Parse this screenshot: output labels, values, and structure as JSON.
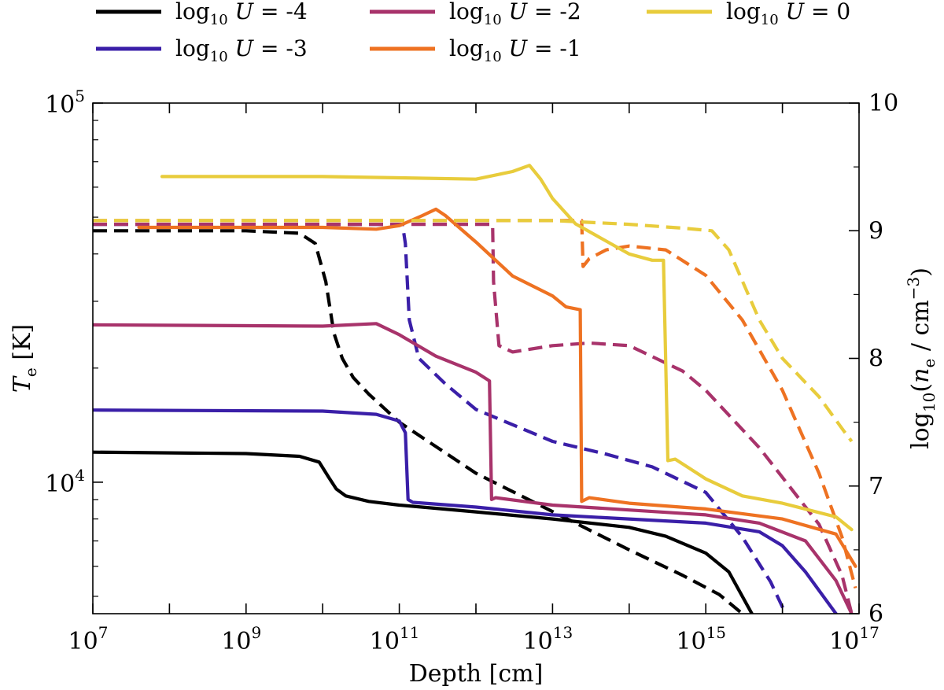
{
  "chart_data": {
    "type": "line",
    "xlabel": "Depth [cm]",
    "ylabel": "T_e [K]",
    "ylabel_right": "log10(n_e / cm^-3)",
    "x_scale": "log",
    "y_scale": "log",
    "xlim": [
      10000000.0,
      1e+17
    ],
    "ylim": [
      4500,
      100000
    ],
    "ylim_right": [
      6,
      10
    ],
    "x_ticks": [
      {
        "value": 10000000.0,
        "base": "10",
        "exp": "7"
      },
      {
        "value": 1000000000.0,
        "base": "10",
        "exp": "9"
      },
      {
        "value": 100000000000.0,
        "base": "10",
        "exp": "11"
      },
      {
        "value": 10000000000000.0,
        "base": "10",
        "exp": "13"
      },
      {
        "value": 1000000000000000.0,
        "base": "10",
        "exp": "15"
      },
      {
        "value": 1e+17,
        "base": "10",
        "exp": "17"
      }
    ],
    "y_ticks": [
      {
        "value": 10000,
        "base": "10",
        "exp": "4"
      },
      {
        "value": 100000,
        "base": "10",
        "exp": "5"
      }
    ],
    "y_ticks_right": [
      6,
      7,
      8,
      9,
      10
    ],
    "line_styles": {
      "temperature": "solid",
      "density": "dashed"
    },
    "legend_placement": "top, above plot",
    "series": [
      {
        "name": "log10 U = -4",
        "legend": {
          "pre": "log",
          "sub": "10",
          "post": " U = -4"
        },
        "color": "#000000",
        "temperature": [
          [
            10000000.0,
            12000
          ],
          [
            1000000000.0,
            11900
          ],
          [
            5000000000.0,
            11700
          ],
          [
            9000000000.0,
            11300
          ],
          [
            12000000000.0,
            10300
          ],
          [
            15000000000.0,
            9600
          ],
          [
            20000000000.0,
            9200
          ],
          [
            40000000000.0,
            8900
          ],
          [
            100000000000.0,
            8700
          ],
          [
            1000000000000.0,
            8350
          ],
          [
            10000000000000.0,
            8000
          ],
          [
            100000000000000.0,
            7600
          ],
          [
            300000000000000.0,
            7200
          ],
          [
            1000000000000000.0,
            6500
          ],
          [
            2000000000000000.0,
            5800
          ],
          [
            4000000000000000.0,
            4500
          ]
        ],
        "density": [
          [
            10000000.0,
            9.0
          ],
          [
            1000000000.0,
            9.0
          ],
          [
            5000000000.0,
            8.98
          ],
          [
            8000000000.0,
            8.9
          ],
          [
            11000000000.0,
            8.6
          ],
          [
            14000000000.0,
            8.2
          ],
          [
            18000000000.0,
            8.0
          ],
          [
            25000000000.0,
            7.85
          ],
          [
            40000000000.0,
            7.72
          ],
          [
            100000000000.0,
            7.5
          ],
          [
            1000000000000.0,
            7.1
          ],
          [
            10000000000000.0,
            6.8
          ],
          [
            100000000000000.0,
            6.5
          ],
          [
            500000000000000.0,
            6.3
          ],
          [
            1500000000000000.0,
            6.15
          ],
          [
            3000000000000000.0,
            6.0
          ]
        ]
      },
      {
        "name": "log10 U = -3",
        "legend": {
          "pre": "log",
          "sub": "10",
          "post": " U = -3"
        },
        "color": "#3a1fa8",
        "temperature": [
          [
            10000000.0,
            15500
          ],
          [
            10000000000.0,
            15400
          ],
          [
            50000000000.0,
            15100
          ],
          [
            100000000000.0,
            14500
          ],
          [
            120000000000.0,
            13500
          ],
          [
            130000000000.0,
            9000
          ],
          [
            150000000000.0,
            8850
          ],
          [
            1000000000000.0,
            8600
          ],
          [
            10000000000000.0,
            8200
          ],
          [
            1000000000000000.0,
            7800
          ],
          [
            5000000000000000.0,
            7400
          ],
          [
            1e+16,
            6800
          ],
          [
            2e+16,
            5800
          ],
          [
            5e+16,
            4500
          ]
        ],
        "density": [
          [
            10000000.0,
            9.05
          ],
          [
            110000000000.0,
            9.05
          ],
          [
            120000000000.0,
            8.9
          ],
          [
            135000000000.0,
            8.3
          ],
          [
            180000000000.0,
            8.0
          ],
          [
            400000000000.0,
            7.8
          ],
          [
            1000000000000.0,
            7.6
          ],
          [
            10000000000000.0,
            7.35
          ],
          [
            50000000000000.0,
            7.25
          ],
          [
            200000000000000.0,
            7.15
          ],
          [
            1000000000000000.0,
            6.95
          ],
          [
            3000000000000000.0,
            6.6
          ],
          [
            7000000000000000.0,
            6.25
          ],
          [
            1.1e+16,
            6.0
          ]
        ]
      },
      {
        "name": "log10 U = -2",
        "legend": {
          "pre": "log",
          "sub": "10",
          "post": " U = -2"
        },
        "color": "#a8336b",
        "temperature": [
          [
            10000000.0,
            26000
          ],
          [
            10000000000.0,
            25800
          ],
          [
            50000000000.0,
            26200
          ],
          [
            100000000000.0,
            24500
          ],
          [
            300000000000.0,
            21500
          ],
          [
            1000000000000.0,
            19500
          ],
          [
            1500000000000.0,
            18500
          ],
          [
            1600000000000.0,
            9000
          ],
          [
            1800000000000.0,
            9100
          ],
          [
            10000000000000.0,
            8700
          ],
          [
            1000000000000000.0,
            8200
          ],
          [
            5000000000000000.0,
            7800
          ],
          [
            2e+16,
            7000
          ],
          [
            5e+16,
            5500
          ],
          [
            8e+16,
            4500
          ]
        ],
        "density": [
          [
            10000000.0,
            9.05
          ],
          [
            1650000000000.0,
            9.05
          ],
          [
            1700000000000.0,
            8.6
          ],
          [
            2000000000000.0,
            8.1
          ],
          [
            3000000000000.0,
            8.05
          ],
          [
            10000000000000.0,
            8.1
          ],
          [
            30000000000000.0,
            8.12
          ],
          [
            100000000000000.0,
            8.1
          ],
          [
            500000000000000.0,
            7.9
          ],
          [
            1000000000000000.0,
            7.75
          ],
          [
            5000000000000000.0,
            7.3
          ],
          [
            3e+16,
            6.7
          ],
          [
            6e+16,
            6.3
          ],
          [
            8e+16,
            6.0
          ]
        ]
      },
      {
        "name": "log10 U = -1",
        "legend": {
          "pre": "log",
          "sub": "10",
          "post": " U = -1"
        },
        "color": "#ee7222",
        "temperature": [
          [
            40000000.0,
            47000
          ],
          [
            10000000000.0,
            47000
          ],
          [
            50000000000.0,
            46500
          ],
          [
            100000000000.0,
            47500
          ],
          [
            200000000000.0,
            50500
          ],
          [
            300000000000.0,
            52500
          ],
          [
            400000000000.0,
            50500
          ],
          [
            1000000000000.0,
            43000
          ],
          [
            3000000000000.0,
            35000
          ],
          [
            10000000000000.0,
            31000
          ],
          [
            15000000000000.0,
            29000
          ],
          [
            23000000000000.0,
            28500
          ],
          [
            24000000000000.0,
            8900
          ],
          [
            30000000000000.0,
            9100
          ],
          [
            100000000000000.0,
            8800
          ],
          [
            1000000000000000.0,
            8500
          ],
          [
            1e+16,
            8000
          ],
          [
            5e+16,
            7300
          ],
          [
            9e+16,
            6000
          ]
        ],
        "density": [
          [
            10000000.0,
            9.08
          ],
          [
            24000000000000.0,
            9.08
          ],
          [
            25000000000000.0,
            8.72
          ],
          [
            30000000000000.0,
            8.78
          ],
          [
            50000000000000.0,
            8.85
          ],
          [
            100000000000000.0,
            8.88
          ],
          [
            300000000000000.0,
            8.85
          ],
          [
            1000000000000000.0,
            8.65
          ],
          [
            3000000000000000.0,
            8.3
          ],
          [
            1e+16,
            7.75
          ],
          [
            3e+16,
            7.1
          ],
          [
            6e+16,
            6.6
          ],
          [
            9e+16,
            6.2
          ]
        ]
      },
      {
        "name": "log10 U = 0",
        "legend": {
          "pre": "log",
          "sub": "10",
          "post": " U = 0"
        },
        "color": "#e8cc3c",
        "temperature": [
          [
            80000000.0,
            64000
          ],
          [
            10000000000.0,
            64000
          ],
          [
            100000000000.0,
            63500
          ],
          [
            1000000000000.0,
            63000
          ],
          [
            3000000000000.0,
            66000
          ],
          [
            5000000000000.0,
            68500
          ],
          [
            7000000000000.0,
            63000
          ],
          [
            10000000000000.0,
            56000
          ],
          [
            20000000000000.0,
            48000
          ],
          [
            100000000000000.0,
            40000
          ],
          [
            200000000000000.0,
            38500
          ],
          [
            280000000000000.0,
            38500
          ],
          [
            320000000000000.0,
            11400
          ],
          [
            400000000000000.0,
            11500
          ],
          [
            1000000000000000.0,
            10200
          ],
          [
            3000000000000000.0,
            9200
          ],
          [
            1e+16,
            8800
          ],
          [
            5e+16,
            8100
          ],
          [
            8e+16,
            7500
          ]
        ],
        "density": [
          [
            10000000.0,
            9.08
          ],
          [
            10000000000000.0,
            9.08
          ],
          [
            100000000000000.0,
            9.05
          ],
          [
            500000000000000.0,
            9.02
          ],
          [
            1200000000000000.0,
            9.0
          ],
          [
            2000000000000000.0,
            8.85
          ],
          [
            5000000000000000.0,
            8.3
          ],
          [
            1e+16,
            8.0
          ],
          [
            3e+16,
            7.7
          ],
          [
            6e+16,
            7.45
          ],
          [
            8e+16,
            7.35
          ]
        ]
      }
    ]
  }
}
